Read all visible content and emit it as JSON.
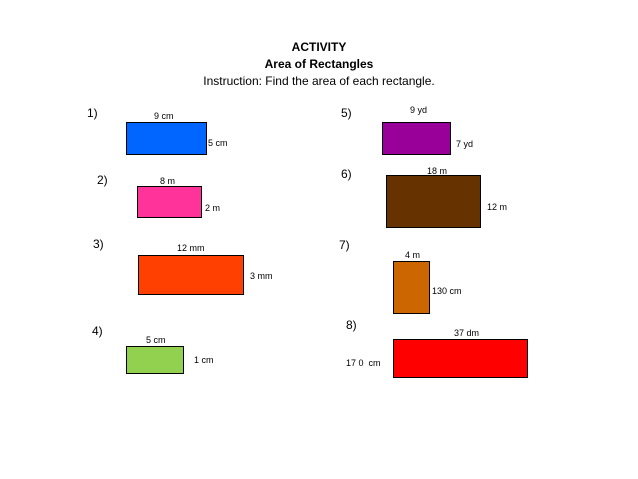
{
  "header": {
    "title": "ACTIVITY",
    "subtitle": "Area of Rectangles",
    "instruction": "Instruction: Find the area of each rectangle."
  },
  "problems": [
    {
      "number": "1)",
      "top_label": "9 cm",
      "side_label": "5 cm",
      "color": "#0066FF"
    },
    {
      "number": "2)",
      "top_label": "8 m",
      "side_label": "2 m",
      "color": "#FF3399"
    },
    {
      "number": "3)",
      "top_label": "12 mm",
      "side_label": "3 mm",
      "color": "#FF4000"
    },
    {
      "number": "4)",
      "top_label": "5 cm",
      "side_label": "1 cm",
      "color": "#92D050"
    },
    {
      "number": "5)",
      "top_label": "9 yd",
      "side_label": "7 yd",
      "color": "#990099"
    },
    {
      "number": "6)",
      "top_label": "18 m",
      "side_label": "12 m",
      "color": "#663300"
    },
    {
      "number": "7)",
      "top_label": "4 m",
      "side_label": "130 cm",
      "color": "#CC6600"
    },
    {
      "number": "8)",
      "top_label": "37 dm",
      "side_label": "17 0  cm",
      "color": "#FF0000"
    }
  ]
}
